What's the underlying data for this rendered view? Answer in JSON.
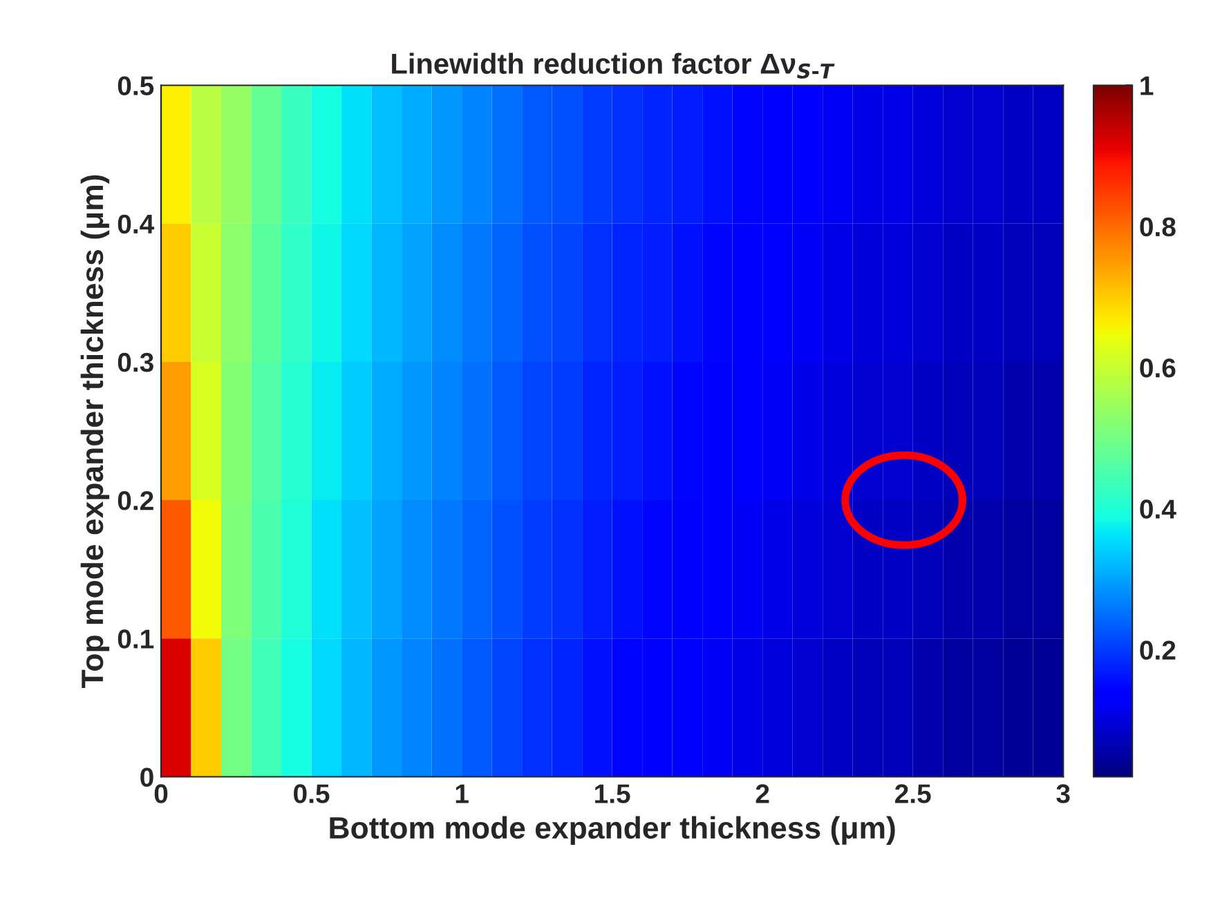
{
  "chart_data": {
    "type": "heatmap",
    "title": "Linewidth reduction factor Δν$_{S-T}$",
    "xlabel": "Bottom mode expander thickness (μm)",
    "ylabel": "Top mode expander thickness (μm)",
    "x": [
      0.05,
      0.15,
      0.25,
      0.35,
      0.45,
      0.55,
      0.65,
      0.75,
      0.85,
      0.95,
      1.05,
      1.15,
      1.25,
      1.35,
      1.45,
      1.55,
      1.65,
      1.75,
      1.85,
      1.95,
      2.05,
      2.15,
      2.25,
      2.35,
      2.45,
      2.55,
      2.65,
      2.75,
      2.85,
      2.95
    ],
    "y": [
      0.45,
      0.35,
      0.25,
      0.15,
      0.05
    ],
    "xlim": [
      0,
      3
    ],
    "xticks": [
      0,
      0.5,
      1,
      1.5,
      2,
      2.5,
      3
    ],
    "ylim": [
      0,
      0.5
    ],
    "yticks": [
      0,
      0.1,
      0.2,
      0.3,
      0.4,
      0.5
    ],
    "clim": [
      0.02,
      1
    ],
    "cticks": [
      0.2,
      0.4,
      0.6,
      0.8,
      1
    ],
    "cells": [
      [
        0.66,
        0.58,
        0.54,
        0.48,
        0.43,
        0.39,
        0.36,
        0.33,
        0.31,
        0.29,
        0.27,
        0.25,
        0.23,
        0.22,
        0.2,
        0.19,
        0.18,
        0.17,
        0.16,
        0.15,
        0.14,
        0.13,
        0.12,
        0.11,
        0.11,
        0.1,
        0.09,
        0.09,
        0.08,
        0.08
      ],
      [
        0.7,
        0.6,
        0.53,
        0.47,
        0.42,
        0.38,
        0.35,
        0.32,
        0.3,
        0.28,
        0.26,
        0.24,
        0.22,
        0.21,
        0.19,
        0.18,
        0.17,
        0.16,
        0.15,
        0.14,
        0.13,
        0.12,
        0.11,
        0.1,
        0.1,
        0.09,
        0.08,
        0.08,
        0.07,
        0.07
      ],
      [
        0.75,
        0.62,
        0.52,
        0.46,
        0.41,
        0.37,
        0.34,
        0.31,
        0.29,
        0.27,
        0.25,
        0.23,
        0.21,
        0.2,
        0.18,
        0.17,
        0.16,
        0.15,
        0.14,
        0.13,
        0.12,
        0.11,
        0.1,
        0.09,
        0.09,
        0.08,
        0.07,
        0.07,
        0.06,
        0.06
      ],
      [
        0.82,
        0.65,
        0.51,
        0.45,
        0.4,
        0.36,
        0.33,
        0.3,
        0.28,
        0.26,
        0.24,
        0.22,
        0.2,
        0.19,
        0.17,
        0.16,
        0.15,
        0.14,
        0.13,
        0.12,
        0.11,
        0.1,
        0.09,
        0.08,
        0.08,
        0.07,
        0.06,
        0.06,
        0.05,
        0.05
      ],
      [
        0.92,
        0.7,
        0.5,
        0.44,
        0.39,
        0.35,
        0.32,
        0.29,
        0.27,
        0.25,
        0.23,
        0.21,
        0.19,
        0.18,
        0.16,
        0.15,
        0.14,
        0.13,
        0.12,
        0.11,
        0.1,
        0.09,
        0.08,
        0.07,
        0.07,
        0.06,
        0.05,
        0.05,
        0.04,
        0.04
      ]
    ]
  }
}
